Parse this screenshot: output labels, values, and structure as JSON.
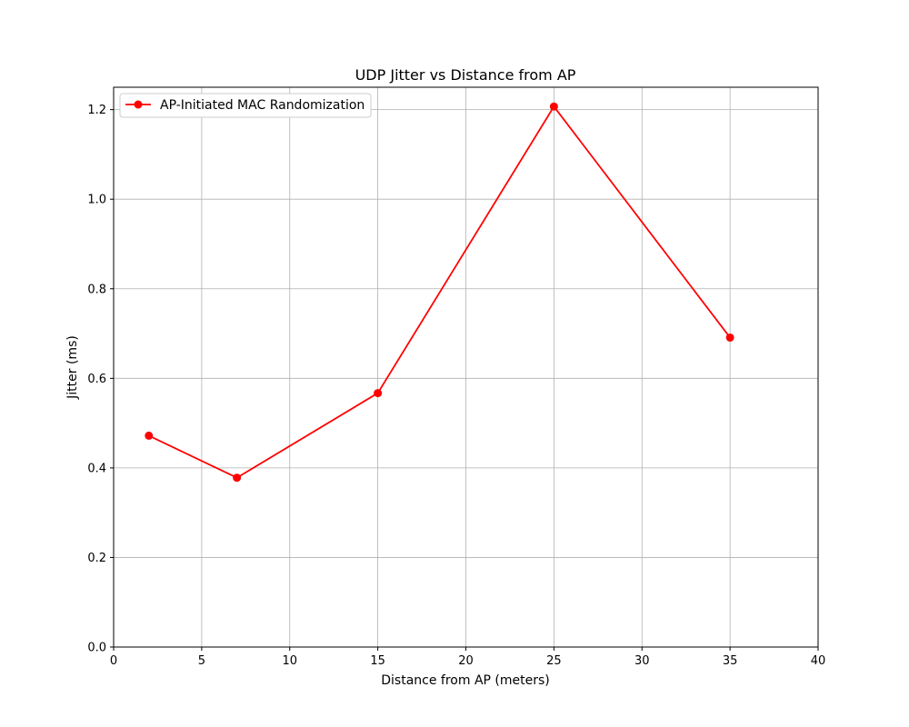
{
  "chart_data": {
    "type": "line",
    "title": "UDP Jitter vs Distance from AP",
    "xlabel": "Distance from AP (meters)",
    "ylabel": "Jitter (ms)",
    "xlim": [
      0,
      40
    ],
    "ylim": [
      0,
      1.25
    ],
    "xticks": [
      "0",
      "5",
      "10",
      "15",
      "20",
      "25",
      "30",
      "35",
      "40"
    ],
    "yticks": [
      "0.0",
      "0.2",
      "0.4",
      "0.6",
      "0.8",
      "1.0",
      "1.2"
    ],
    "grid": true,
    "legend_position": "top-left",
    "series": [
      {
        "name": "AP-Initiated MAC Randomization",
        "color": "#ff0000",
        "marker": "circle",
        "x": [
          2,
          7,
          15,
          25,
          35
        ],
        "y": [
          0.472,
          0.378,
          0.567,
          1.207,
          0.691
        ]
      }
    ]
  }
}
